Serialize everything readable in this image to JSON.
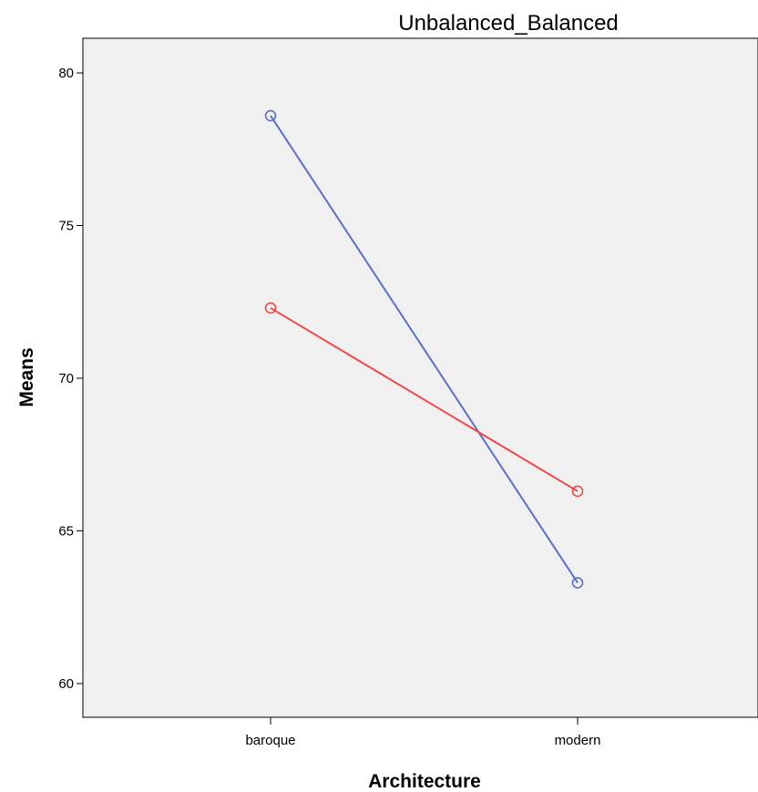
{
  "chart_data": {
    "type": "line",
    "title": "Unbalanced_Balanced",
    "xlabel": "Architecture",
    "ylabel": "Means",
    "categories": [
      "baroque",
      "modern"
    ],
    "ylim": [
      59,
      81
    ],
    "yticks": [
      60,
      65,
      70,
      75,
      80
    ],
    "grid": false,
    "series": [
      {
        "values": [
          78.6,
          63.3
        ],
        "color": "#5a6fc6"
      },
      {
        "values": [
          72.3,
          66.3
        ],
        "color": "#f04848"
      }
    ]
  },
  "colors": {
    "plot_background": "#f0f0f0",
    "axis": "#000000"
  }
}
